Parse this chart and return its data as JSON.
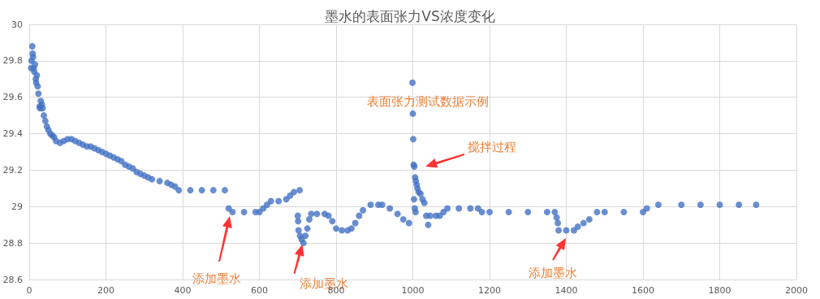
{
  "chart_data": {
    "type": "scatter",
    "title": "墨水的表面张力VS浓度变化",
    "marker": "circle",
    "grid": true,
    "xlim": [
      0,
      2000
    ],
    "xticks": [
      0,
      200,
      400,
      600,
      800,
      {
        "value": 1000,
        "label": "1000"
      },
      {
        "value": 1200,
        "label": "1200"
      },
      {
        "value": 1400,
        "label": "1400"
      },
      {
        "value": 1600,
        "label": "1600"
      },
      {
        "value": 1800,
        "label": "1800"
      },
      {
        "value": 2000,
        "label": "2000"
      }
    ],
    "ylim": [
      28.6,
      30
    ],
    "yticks": [
      28.6,
      28.8,
      29,
      29.2,
      29.4,
      29.6,
      29.8,
      30
    ],
    "series": [
      {
        "color": "#4472c4",
        "x": [
          5,
          6,
          8,
          9,
          10,
          12,
          13,
          15,
          17,
          18,
          20,
          22,
          24,
          27,
          28,
          30,
          33,
          35,
          38,
          42,
          46,
          50,
          55,
          60,
          65,
          70,
          80,
          90,
          100,
          110,
          120,
          130,
          140,
          150,
          160,
          170,
          180,
          190,
          200,
          210,
          220,
          230,
          240,
          250,
          260,
          270,
          280,
          290,
          300,
          310,
          320,
          340,
          360,
          370,
          380,
          390,
          420,
          450,
          480,
          510,
          520,
          530,
          560,
          590,
          600,
          610,
          620,
          630,
          650,
          670,
          680,
          690,
          705,
          700,
          701,
          702,
          706,
          710,
          715,
          720,
          725,
          730,
          735,
          750,
          770,
          780,
          790,
          800,
          815,
          830,
          840,
          850,
          860,
          870,
          890,
          910,
          920,
          940,
          960,
          975,
          990,
          999,
          1000,
          1001,
          1002,
          1004,
          1006,
          1008,
          1010,
          1003,
          1005,
          1007,
          1012,
          1015,
          1020,
          1025,
          1030,
          1035,
          1040,
          1045,
          1060,
          1070,
          1080,
          1090,
          1120,
          1150,
          1170,
          1180,
          1200,
          1250,
          1300,
          1350,
          1370,
          1375,
          1378,
          1380,
          1400,
          1420,
          1430,
          1445,
          1460,
          1480,
          1500,
          1550,
          1600,
          1610,
          1640,
          1700,
          1750,
          1800,
          1850,
          1895
        ],
        "values": [
          29.76,
          29.8,
          29.88,
          29.84,
          29.82,
          29.76,
          29.74,
          29.78,
          29.7,
          29.68,
          29.72,
          29.66,
          29.62,
          29.55,
          29.54,
          29.58,
          29.56,
          29.54,
          29.5,
          29.47,
          29.44,
          29.42,
          29.4,
          29.39,
          29.38,
          29.36,
          29.35,
          29.36,
          29.37,
          29.37,
          29.36,
          29.35,
          29.34,
          29.33,
          29.33,
          29.32,
          29.31,
          29.3,
          29.29,
          29.28,
          29.27,
          29.26,
          29.25,
          29.23,
          29.22,
          29.21,
          29.19,
          29.18,
          29.17,
          29.16,
          29.15,
          29.14,
          29.13,
          29.12,
          29.11,
          29.09,
          29.09,
          29.09,
          29.09,
          29.09,
          28.99,
          28.97,
          28.97,
          28.97,
          28.97,
          28.99,
          29.01,
          29.03,
          29.03,
          29.04,
          29.06,
          29.08,
          29.09,
          28.95,
          28.92,
          28.87,
          28.84,
          28.82,
          28.8,
          28.84,
          28.88,
          28.93,
          28.96,
          28.96,
          28.96,
          28.95,
          28.92,
          28.88,
          28.87,
          28.87,
          28.88,
          28.91,
          28.95,
          28.98,
          29.01,
          29.01,
          29.01,
          28.99,
          28.96,
          28.93,
          28.91,
          29.68,
          29.51,
          29.37,
          29.23,
          29.22,
          29.16,
          29.14,
          29.12,
          29.04,
          28.99,
          28.97,
          29.1,
          29.08,
          29.07,
          29.04,
          29.02,
          28.95,
          28.9,
          28.95,
          28.95,
          28.95,
          28.97,
          28.99,
          28.99,
          28.99,
          28.99,
          28.97,
          28.97,
          28.97,
          28.97,
          28.97,
          28.97,
          28.94,
          28.91,
          28.87,
          28.87,
          28.87,
          28.89,
          28.91,
          28.93,
          28.97,
          28.97,
          28.97,
          28.97,
          28.99,
          29.01,
          29.01,
          29.01,
          29.01,
          29.01,
          29.01
        ]
      }
    ],
    "annotations": [
      "添加墨水",
      {
        "text": "添加墨水",
        "x": 710,
        "y": 28.82
      },
      "添加墨水",
      "搅拌过程",
      "表面张力测试数据示例"
    ]
  }
}
